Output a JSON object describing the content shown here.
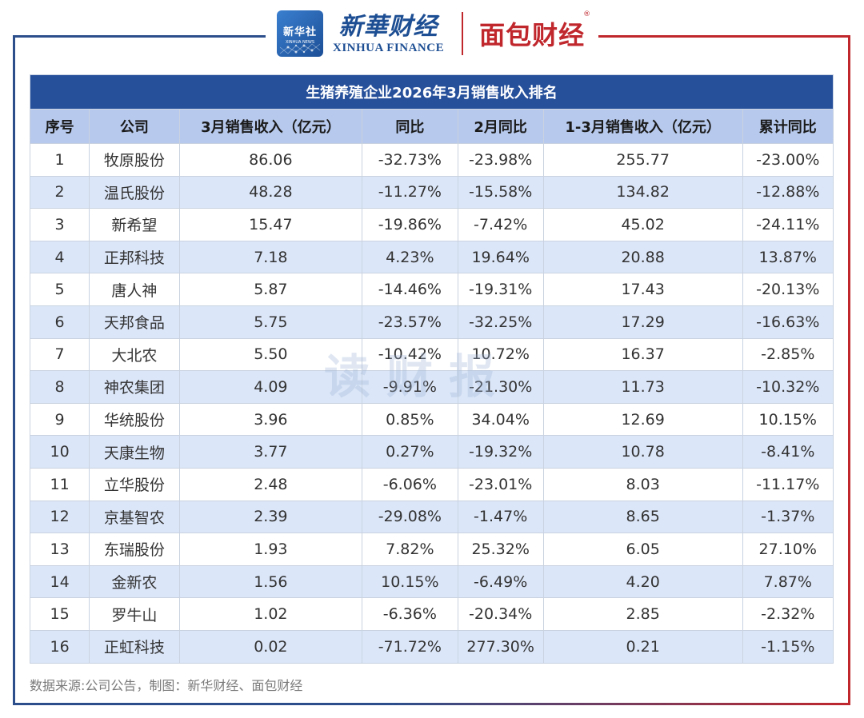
{
  "header": {
    "logo_text": "新华社",
    "logo_subtext": "XINHUA NEWS",
    "brand_cn": "新華财经",
    "brand_en": "XINHUA FINANCE",
    "partner_brand": "面包财经",
    "partner_reg": "®"
  },
  "table": {
    "title": "生猪养殖企业2026年3月销售收入排名",
    "columns": [
      "序号",
      "公司",
      "3月销售收入（亿元）",
      "同比",
      "2月同比",
      "1-3月销售收入（亿元）",
      "累计同比"
    ],
    "rows": [
      [
        "1",
        "牧原股份",
        "86.06",
        "-32.73%",
        "-23.98%",
        "255.77",
        "-23.00%"
      ],
      [
        "2",
        "温氏股份",
        "48.28",
        "-11.27%",
        "-15.58%",
        "134.82",
        "-12.88%"
      ],
      [
        "3",
        "新希望",
        "15.47",
        "-19.86%",
        "-7.42%",
        "45.02",
        "-24.11%"
      ],
      [
        "4",
        "正邦科技",
        "7.18",
        "4.23%",
        "19.64%",
        "20.88",
        "13.87%"
      ],
      [
        "5",
        "唐人神",
        "5.87",
        "-14.46%",
        "-19.31%",
        "17.43",
        "-20.13%"
      ],
      [
        "6",
        "天邦食品",
        "5.75",
        "-23.57%",
        "-32.25%",
        "17.29",
        "-16.63%"
      ],
      [
        "7",
        "大北农",
        "5.50",
        "-10.42%",
        "10.72%",
        "16.37",
        "-2.85%"
      ],
      [
        "8",
        "神农集团",
        "4.09",
        "-9.91%",
        "-21.30%",
        "11.73",
        "-10.32%"
      ],
      [
        "9",
        "华统股份",
        "3.96",
        "0.85%",
        "34.04%",
        "12.69",
        "10.15%"
      ],
      [
        "10",
        "天康生物",
        "3.77",
        "0.27%",
        "-19.32%",
        "10.78",
        "-8.41%"
      ],
      [
        "11",
        "立华股份",
        "2.48",
        "-6.06%",
        "-23.01%",
        "8.03",
        "-11.17%"
      ],
      [
        "12",
        "京基智农",
        "2.39",
        "-29.08%",
        "-1.47%",
        "8.65",
        "-1.37%"
      ],
      [
        "13",
        "东瑞股份",
        "1.93",
        "7.82%",
        "25.32%",
        "6.05",
        "27.10%"
      ],
      [
        "14",
        "金新农",
        "1.56",
        "10.15%",
        "-6.49%",
        "4.20",
        "7.87%"
      ],
      [
        "15",
        "罗牛山",
        "1.02",
        "-6.36%",
        "-20.34%",
        "2.85",
        "-2.32%"
      ],
      [
        "16",
        "正虹科技",
        "0.02",
        "-71.72%",
        "277.30%",
        "0.21",
        "-1.15%"
      ]
    ]
  },
  "watermark": "读财报",
  "source": "数据来源:公司公告，制图：新华财经、面包财经",
  "colors": {
    "title_bg": "#27509b",
    "header_bg": "#b7c9ec",
    "stripe_bg": "#dbe6f8",
    "brand_blue": "#1d4e93",
    "brand_red": "#c0272d"
  }
}
